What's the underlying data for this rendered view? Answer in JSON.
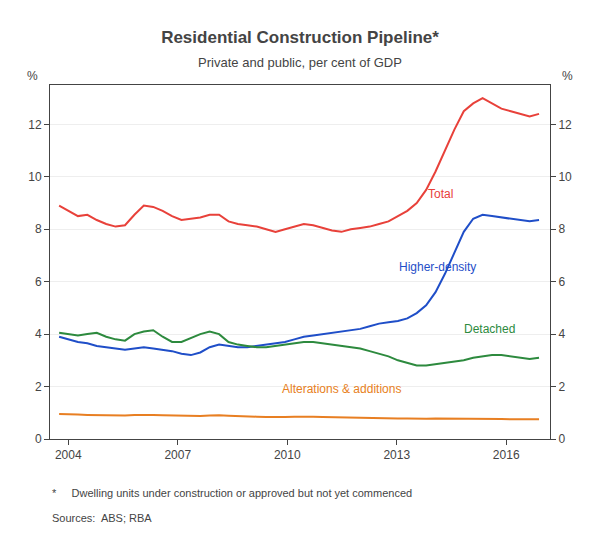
{
  "chart_data": {
    "type": "line",
    "title": "Residential Construction Pipeline*",
    "subtitle": "Private and public, per cent of GDP",
    "footnote": "*     Dwelling units under construction or approved but not yet commenced",
    "sources": "Sources:  ABS; RBA",
    "ylabel": "%",
    "y2label": "%",
    "x": [
      2003.75,
      2004.007843,
      2004.265686,
      2004.523529,
      2004.781373,
      2005.039216,
      2005.297059,
      2005.554902,
      2005.812745,
      2006.070588,
      2006.328431,
      2006.586275,
      2006.844118,
      2007.101961,
      2007.359804,
      2007.617647,
      2007.87549,
      2008.133333,
      2008.391176,
      2008.64902,
      2008.906863,
      2009.164706,
      2009.422549,
      2009.680392,
      2009.938235,
      2010.196078,
      2010.453922,
      2010.711765,
      2010.969608,
      2011.227451,
      2011.485294,
      2011.743137,
      2012.00098,
      2012.258824,
      2012.516667,
      2012.77451,
      2013.032353,
      2013.290196,
      2013.548039,
      2013.805882,
      2014.063725,
      2014.321569,
      2014.579412,
      2014.837255,
      2015.095098,
      2015.352941,
      2015.610784,
      2015.868627,
      2016.126471,
      2016.384314,
      2016.642157,
      2016.9
    ],
    "series": [
      {
        "name": "Total",
        "color": "#e8413a",
        "values": [
          8.9,
          8.7,
          8.5,
          8.55,
          8.35,
          8.2,
          8.1,
          8.15,
          8.55,
          8.9,
          8.85,
          8.7,
          8.5,
          8.35,
          8.4,
          8.45,
          8.55,
          8.55,
          8.3,
          8.2,
          8.15,
          8.1,
          8.0,
          7.9,
          8.0,
          8.1,
          8.2,
          8.15,
          8.05,
          7.95,
          7.9,
          8.0,
          8.05,
          8.1,
          8.2,
          8.3,
          8.5,
          8.7,
          9.0,
          9.5,
          10.2,
          11.0,
          11.8,
          12.5,
          12.8,
          13.0,
          12.8,
          12.6,
          12.5,
          12.4,
          12.3,
          12.4
        ]
      },
      {
        "name": "Higher-density",
        "color": "#1f4ec8",
        "values": [
          3.9,
          3.8,
          3.7,
          3.65,
          3.55,
          3.5,
          3.45,
          3.4,
          3.45,
          3.5,
          3.45,
          3.4,
          3.35,
          3.25,
          3.2,
          3.3,
          3.5,
          3.6,
          3.55,
          3.5,
          3.5,
          3.55,
          3.6,
          3.65,
          3.7,
          3.8,
          3.9,
          3.95,
          4.0,
          4.05,
          4.1,
          4.15,
          4.2,
          4.3,
          4.4,
          4.45,
          4.5,
          4.6,
          4.8,
          5.1,
          5.6,
          6.3,
          7.1,
          7.9,
          8.4,
          8.55,
          8.5,
          8.45,
          8.4,
          8.35,
          8.3,
          8.35
        ]
      },
      {
        "name": "Detached",
        "color": "#2d8a3e",
        "values": [
          4.05,
          4.0,
          3.95,
          4.0,
          4.05,
          3.9,
          3.8,
          3.75,
          4.0,
          4.1,
          4.15,
          3.9,
          3.7,
          3.7,
          3.85,
          4.0,
          4.1,
          4.0,
          3.7,
          3.6,
          3.55,
          3.5,
          3.5,
          3.55,
          3.6,
          3.65,
          3.7,
          3.7,
          3.65,
          3.6,
          3.55,
          3.5,
          3.45,
          3.35,
          3.25,
          3.15,
          3.0,
          2.9,
          2.8,
          2.8,
          2.85,
          2.9,
          2.95,
          3.0,
          3.1,
          3.15,
          3.2,
          3.2,
          3.15,
          3.1,
          3.05,
          3.1
        ]
      },
      {
        "name": "Alterations & additions",
        "color": "#e87f22",
        "values": [
          0.95,
          0.95,
          0.93,
          0.92,
          0.91,
          0.9,
          0.89,
          0.9,
          0.92,
          0.93,
          0.92,
          0.91,
          0.9,
          0.88,
          0.87,
          0.88,
          0.9,
          0.91,
          0.89,
          0.87,
          0.86,
          0.85,
          0.84,
          0.83,
          0.84,
          0.85,
          0.86,
          0.85,
          0.84,
          0.83,
          0.82,
          0.81,
          0.8,
          0.8,
          0.79,
          0.78,
          0.78,
          0.78,
          0.77,
          0.77,
          0.78,
          0.78,
          0.77,
          0.77,
          0.77,
          0.77,
          0.76,
          0.76,
          0.75,
          0.75,
          0.75,
          0.75
        ]
      }
    ],
    "annotations": [
      {
        "text": "Total",
        "x": 2013.8,
        "y": 9.0
      },
      {
        "text": "Higher-density",
        "x": 2013.0,
        "y": 6.2
      },
      {
        "text": "Detached",
        "x": 2014.8,
        "y": 3.85
      },
      {
        "text": "Alterations & additions",
        "x": 2009.8,
        "y": 1.55
      }
    ],
    "xlim": [
      2003.5,
      2017.2
    ],
    "xticks": [
      2004,
      2007,
      2010,
      2013,
      2016
    ],
    "ylim": [
      0,
      13.5
    ],
    "yticks": [
      0,
      2,
      4,
      6,
      8,
      10,
      12
    ],
    "y2lim": [
      0,
      13.5
    ],
    "y2ticks": [
      0,
      2,
      4,
      6,
      8,
      10,
      12
    ],
    "grid": "y"
  }
}
